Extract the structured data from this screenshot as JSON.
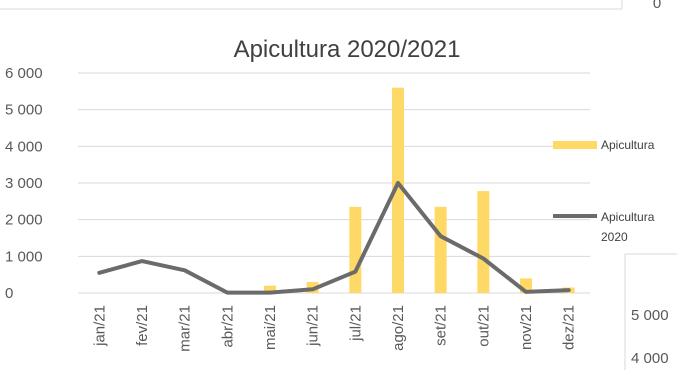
{
  "chart_data": {
    "type": "bar",
    "title": "Apicultura 2020/2021",
    "categories": [
      "jan/21",
      "fev/21",
      "mar/21",
      "abr/21",
      "mai/21",
      "jun/21",
      "jul/21",
      "ago/21",
      "set/21",
      "out/21",
      "nov/21",
      "dez/21"
    ],
    "series": [
      {
        "name": "Apicultura",
        "type": "bar",
        "color": "#FFD966",
        "values": [
          0,
          0,
          0,
          0,
          200,
          300,
          2350,
          5600,
          2350,
          2780,
          400,
          150
        ]
      },
      {
        "name": "Apicultura 2020",
        "type": "line",
        "color": "#6B6B6B",
        "values": [
          550,
          870,
          620,
          10,
          10,
          100,
          580,
          3000,
          1550,
          940,
          30,
          80
        ]
      }
    ],
    "yticks": [
      "0",
      "1 000",
      "2 000",
      "3 000",
      "4 000",
      "5 000",
      "6 000"
    ],
    "ylim": [
      0,
      6000
    ],
    "grid": true,
    "legend_position": "right",
    "legend": [
      {
        "label_lines": [
          "Apicultura"
        ]
      },
      {
        "label_lines": [
          "Apicultura",
          "2020"
        ]
      }
    ]
  },
  "background_fragments": {
    "top_right": "0",
    "right_ticks": [
      "5 000",
      "4 000"
    ]
  }
}
